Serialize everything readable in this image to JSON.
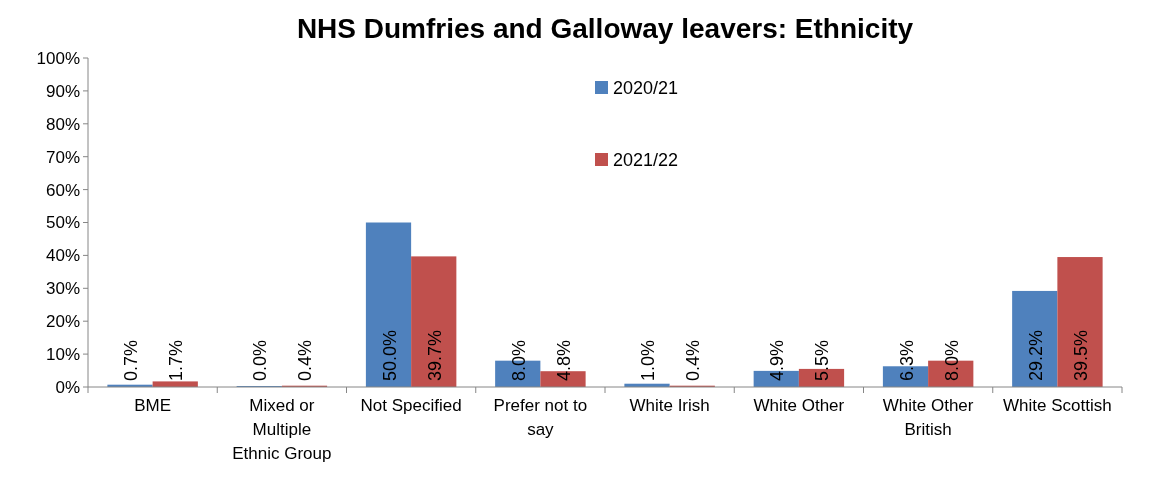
{
  "chart_data": {
    "type": "bar",
    "title": "NHS Dumfries and Galloway leavers: Ethnicity",
    "categories": [
      "BME",
      "Mixed or Multiple Ethnic Group",
      "Not Specified",
      "Prefer not to say",
      "White Irish",
      "White Other",
      "White Other British",
      "White Scottish"
    ],
    "series": [
      {
        "name": "2020/21",
        "color": "#4f81bd",
        "values": [
          0.7,
          0.0,
          50.0,
          8.0,
          1.0,
          4.9,
          6.3,
          29.2
        ],
        "value_labels": [
          "0.7%",
          "0.0%",
          "50.0%",
          "8.0%",
          "1.0%",
          "4.9%",
          "6.3%",
          "29.2%"
        ]
      },
      {
        "name": "2021/22",
        "color": "#c0504d",
        "values": [
          1.7,
          0.4,
          39.7,
          4.8,
          0.4,
          5.5,
          8.0,
          39.5
        ],
        "value_labels": [
          "1.7%",
          "0.4%",
          "39.7%",
          "4.8%",
          "0.4%",
          "5.5%",
          "8.0%",
          "39.5%"
        ]
      }
    ],
    "ylim": [
      0,
      100
    ],
    "yticks": [
      {
        "value": 0,
        "label": "0%"
      },
      {
        "value": 10,
        "label": "10%"
      },
      {
        "value": 20,
        "label": "20%"
      },
      {
        "value": 30,
        "label": "30%"
      },
      {
        "value": 40,
        "label": "40%"
      },
      {
        "value": 50,
        "label": "50%"
      },
      {
        "value": 60,
        "label": "60%"
      },
      {
        "value": 70,
        "label": "70%"
      },
      {
        "value": 80,
        "label": "80%"
      },
      {
        "value": 90,
        "label": "90%"
      },
      {
        "value": 100,
        "label": "100%"
      }
    ],
    "legend": "top"
  }
}
